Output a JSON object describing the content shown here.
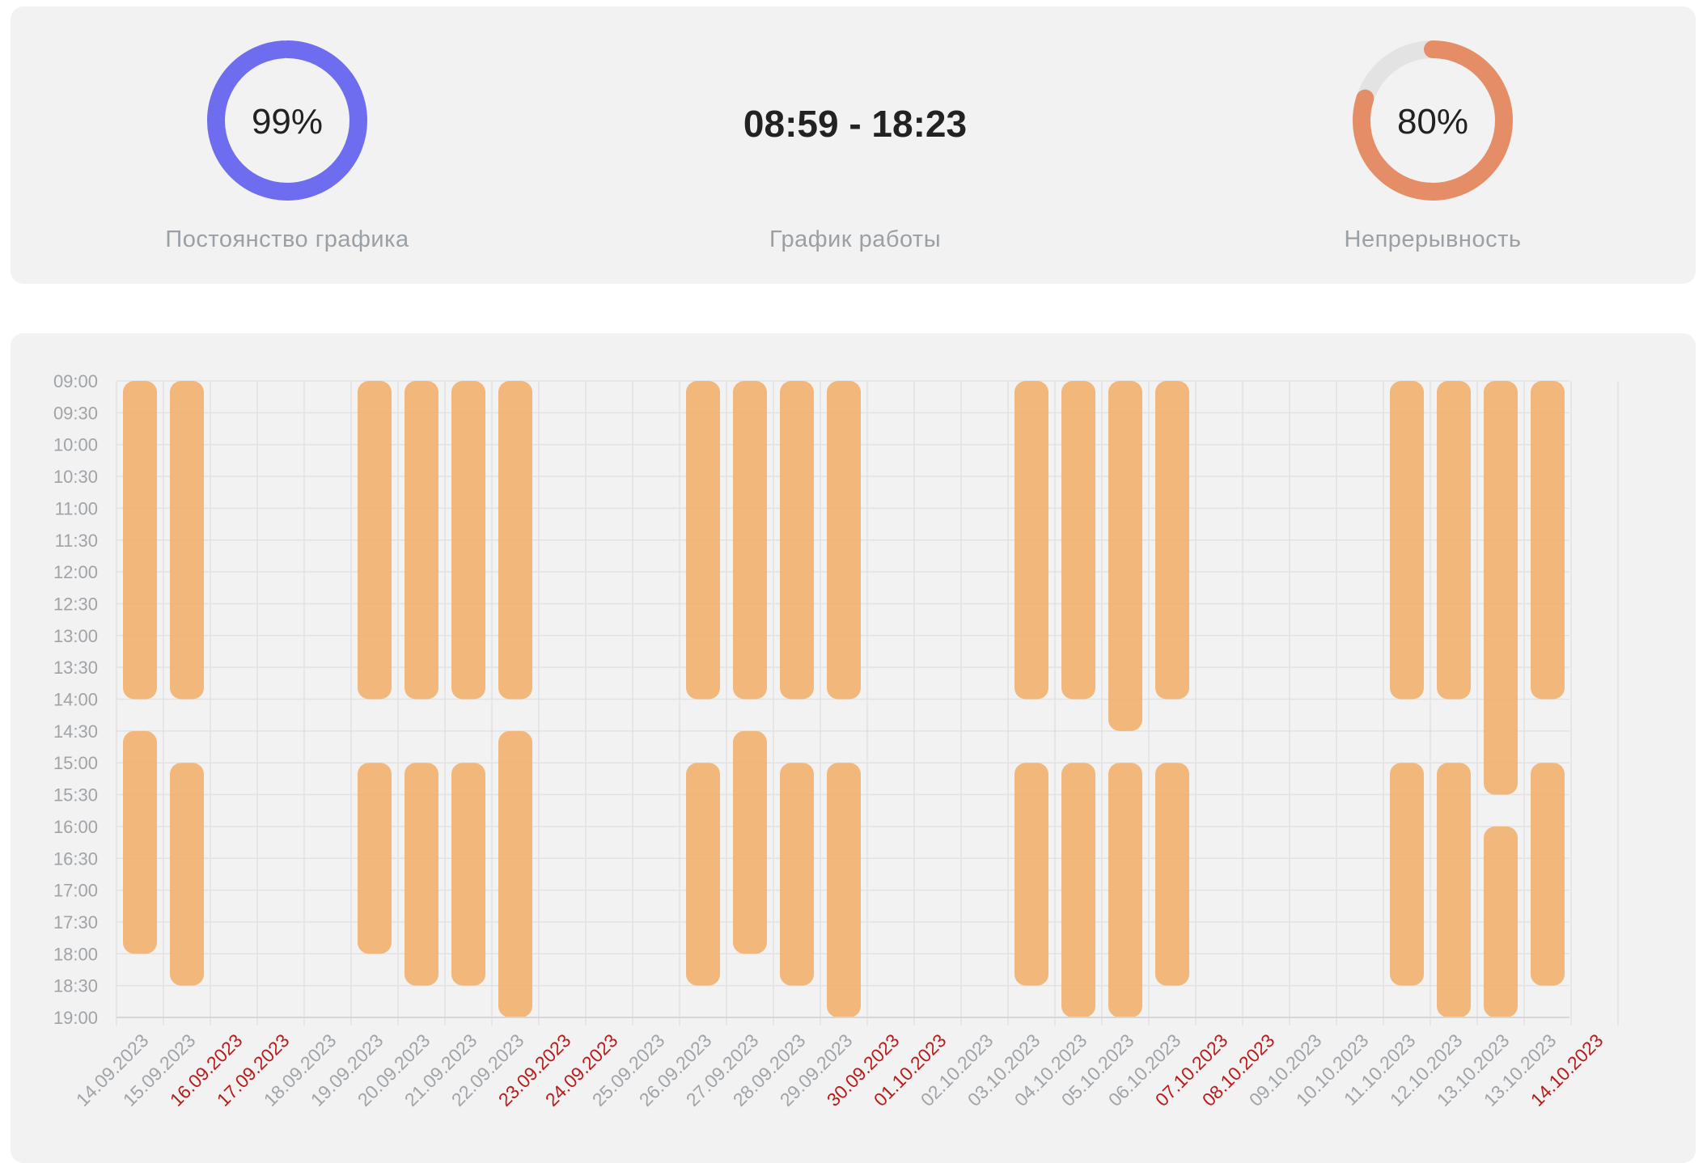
{
  "summary": {
    "consistency": {
      "value": "99%",
      "label": "Постоянство графика",
      "fraction": 0.99,
      "color": "#6e6cef"
    },
    "schedule": {
      "value": "08:59 - 18:23",
      "label": "График работы"
    },
    "continuity": {
      "value": "80%",
      "label": "Непрерывность",
      "fraction": 0.8,
      "color": "#e58d66"
    }
  },
  "chart_data": {
    "type": "bar",
    "subtype": "floating-vertical-ranges",
    "y_ticks": [
      "09:00",
      "09:30",
      "10:00",
      "10:30",
      "11:00",
      "11:30",
      "12:00",
      "12:30",
      "13:00",
      "13:30",
      "14:00",
      "14:30",
      "15:00",
      "15:30",
      "16:00",
      "16:30",
      "17:00",
      "17:30",
      "18:00",
      "18:30",
      "19:00"
    ],
    "ylim": [
      "09:00",
      "19:00"
    ],
    "y_reversed": true,
    "grid": true,
    "bar_color": "#f2ad66",
    "weekend_label_color": "#b71c1c",
    "categories": [
      {
        "date": "14.09.2023",
        "weekend": false,
        "intervals": [
          [
            "09:00",
            "14:00"
          ],
          [
            "14:30",
            "18:00"
          ]
        ]
      },
      {
        "date": "15.09.2023",
        "weekend": false,
        "intervals": [
          [
            "09:00",
            "14:00"
          ],
          [
            "15:00",
            "18:30"
          ]
        ]
      },
      {
        "date": "16.09.2023",
        "weekend": true,
        "intervals": []
      },
      {
        "date": "17.09.2023",
        "weekend": true,
        "intervals": []
      },
      {
        "date": "18.09.2023",
        "weekend": false,
        "intervals": []
      },
      {
        "date": "19.09.2023",
        "weekend": false,
        "intervals": [
          [
            "09:00",
            "14:00"
          ],
          [
            "15:00",
            "18:00"
          ]
        ]
      },
      {
        "date": "20.09.2023",
        "weekend": false,
        "intervals": [
          [
            "09:00",
            "14:00"
          ],
          [
            "15:00",
            "18:30"
          ]
        ]
      },
      {
        "date": "21.09.2023",
        "weekend": false,
        "intervals": [
          [
            "09:00",
            "14:00"
          ],
          [
            "15:00",
            "18:30"
          ]
        ]
      },
      {
        "date": "22.09.2023",
        "weekend": false,
        "intervals": [
          [
            "09:00",
            "14:00"
          ],
          [
            "14:30",
            "19:00"
          ]
        ]
      },
      {
        "date": "23.09.2023",
        "weekend": true,
        "intervals": []
      },
      {
        "date": "24.09.2023",
        "weekend": true,
        "intervals": []
      },
      {
        "date": "25.09.2023",
        "weekend": false,
        "intervals": []
      },
      {
        "date": "26.09.2023",
        "weekend": false,
        "intervals": [
          [
            "09:00",
            "14:00"
          ],
          [
            "15:00",
            "18:30"
          ]
        ]
      },
      {
        "date": "27.09.2023",
        "weekend": false,
        "intervals": [
          [
            "09:00",
            "14:00"
          ],
          [
            "14:30",
            "18:00"
          ]
        ]
      },
      {
        "date": "28.09.2023",
        "weekend": false,
        "intervals": [
          [
            "09:00",
            "14:00"
          ],
          [
            "15:00",
            "18:30"
          ]
        ]
      },
      {
        "date": "29.09.2023",
        "weekend": false,
        "intervals": [
          [
            "09:00",
            "14:00"
          ],
          [
            "15:00",
            "19:00"
          ]
        ]
      },
      {
        "date": "30.09.2023",
        "weekend": true,
        "intervals": []
      },
      {
        "date": "01.10.2023",
        "weekend": true,
        "intervals": []
      },
      {
        "date": "02.10.2023",
        "weekend": false,
        "intervals": []
      },
      {
        "date": "03.10.2023",
        "weekend": false,
        "intervals": [
          [
            "09:00",
            "14:00"
          ],
          [
            "15:00",
            "18:30"
          ]
        ]
      },
      {
        "date": "04.10.2023",
        "weekend": false,
        "intervals": [
          [
            "09:00",
            "14:00"
          ],
          [
            "15:00",
            "19:00"
          ]
        ]
      },
      {
        "date": "05.10.2023",
        "weekend": false,
        "intervals": [
          [
            "09:00",
            "14:30"
          ],
          [
            "15:00",
            "19:00"
          ]
        ]
      },
      {
        "date": "06.10.2023",
        "weekend": false,
        "intervals": [
          [
            "09:00",
            "14:00"
          ],
          [
            "15:00",
            "18:30"
          ]
        ]
      },
      {
        "date": "07.10.2023",
        "weekend": true,
        "intervals": []
      },
      {
        "date": "08.10.2023",
        "weekend": true,
        "intervals": []
      },
      {
        "date": "09.10.2023",
        "weekend": false,
        "intervals": []
      },
      {
        "date": "10.10.2023",
        "weekend": false,
        "intervals": []
      },
      {
        "date": "11.10.2023",
        "weekend": false,
        "intervals": [
          [
            "09:00",
            "14:00"
          ],
          [
            "15:00",
            "18:30"
          ]
        ]
      },
      {
        "date": "12.10.2023",
        "weekend": false,
        "intervals": [
          [
            "09:00",
            "14:00"
          ],
          [
            "15:00",
            "19:00"
          ]
        ]
      },
      {
        "date": "13.10.2023",
        "weekend": false,
        "intervals": [
          [
            "09:00",
            "15:30"
          ],
          [
            "16:00",
            "19:00"
          ]
        ]
      },
      {
        "date": "13.10.2023",
        "weekend": false,
        "intervals": [
          [
            "09:00",
            "14:00"
          ],
          [
            "15:00",
            "18:30"
          ]
        ]
      },
      {
        "date": "14.10.2023",
        "weekend": true,
        "intervals": []
      }
    ]
  }
}
